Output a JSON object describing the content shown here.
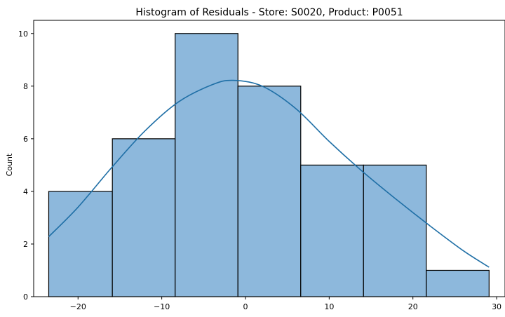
{
  "chart_data": {
    "type": "bar",
    "title": "Histogram of Residuals - Store: S0020, Product: P0051",
    "xlabel": "",
    "ylabel": "Count",
    "xlim": [
      -25.3,
      31.0
    ],
    "ylim": [
      0,
      10.5
    ],
    "xticks": [
      -20,
      -10,
      0,
      10,
      20,
      30
    ],
    "yticks": [
      0,
      2,
      4,
      6,
      8,
      10
    ],
    "bins": [
      {
        "x0": -23.5,
        "x1": -15.9,
        "count": 4
      },
      {
        "x0": -15.9,
        "x1": -8.4,
        "count": 6
      },
      {
        "x0": -8.4,
        "x1": -0.9,
        "count": 10
      },
      {
        "x0": -0.9,
        "x1": 6.6,
        "count": 8
      },
      {
        "x0": 6.6,
        "x1": 14.1,
        "count": 5
      },
      {
        "x0": 14.1,
        "x1": 21.6,
        "count": 5
      },
      {
        "x0": 21.6,
        "x1": 29.1,
        "count": 1
      }
    ],
    "kde": {
      "x": [
        -23.5,
        -20,
        -16,
        -12,
        -8,
        -4,
        -1.5,
        2,
        6,
        10,
        14,
        18,
        22,
        26,
        29.1
      ],
      "y": [
        2.28,
        3.4,
        4.9,
        6.3,
        7.4,
        8.05,
        8.22,
        8.0,
        7.15,
        5.9,
        4.75,
        3.7,
        2.7,
        1.75,
        1.12
      ]
    },
    "grid": false,
    "bar_color": "#8db8dc",
    "line_color": "#1f6fa6"
  }
}
